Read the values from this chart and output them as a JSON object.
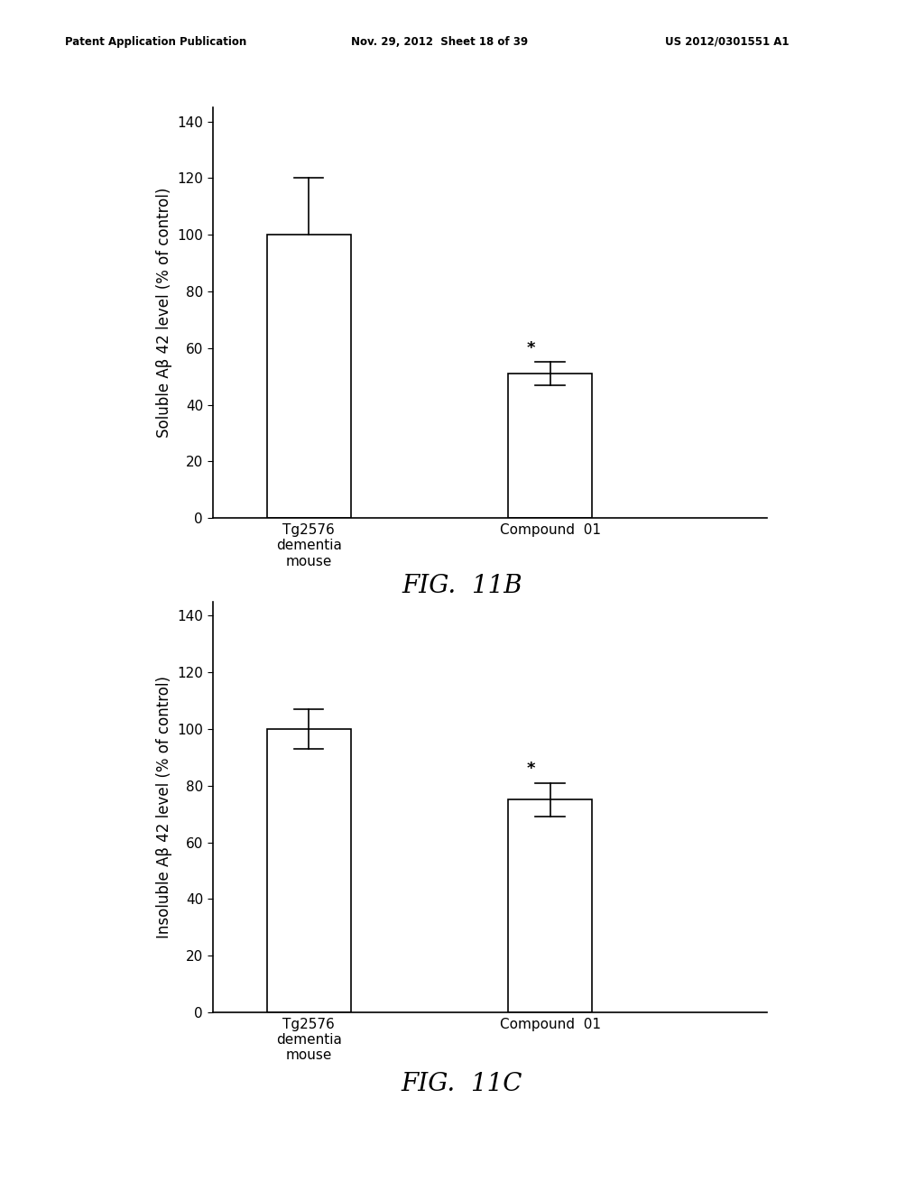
{
  "header_left": "Patent Application Publication",
  "header_mid": "Nov. 29, 2012  Sheet 18 of 39",
  "header_right": "US 2012/0301551 A1",
  "chart1": {
    "ylabel": "Soluble Aβ 42 level (% of control)",
    "categories": [
      "Tg2576\ndementia\nmouse",
      "Compound  01"
    ],
    "values": [
      100,
      51
    ],
    "errors_up": [
      20,
      4
    ],
    "errors_down": [
      0,
      4
    ],
    "star_annotation": "*",
    "star_bar_index": 1,
    "ylim": [
      0,
      145
    ],
    "yticks": [
      0,
      20,
      40,
      60,
      80,
      100,
      120,
      140
    ],
    "fig_label": "FIG.  11B"
  },
  "chart2": {
    "ylabel": "Insoluble Aβ 42 level (% of control)",
    "categories": [
      "Tg2576\ndementia\nmouse",
      "Compound  01"
    ],
    "values": [
      100,
      75
    ],
    "errors_up": [
      7,
      6
    ],
    "errors_down": [
      7,
      6
    ],
    "star_annotation": "*",
    "star_bar_index": 1,
    "ylim": [
      0,
      145
    ],
    "yticks": [
      0,
      20,
      40,
      60,
      80,
      100,
      120,
      140
    ],
    "fig_label": "FIG.  11C"
  },
  "bar_color": "#ffffff",
  "bar_edgecolor": "#000000",
  "bar_width": 0.35,
  "background_color": "#ffffff",
  "text_color": "#000000",
  "axis_fontsize": 12,
  "tick_fontsize": 11,
  "label_fontsize": 11,
  "fig_label_fontsize": 20
}
